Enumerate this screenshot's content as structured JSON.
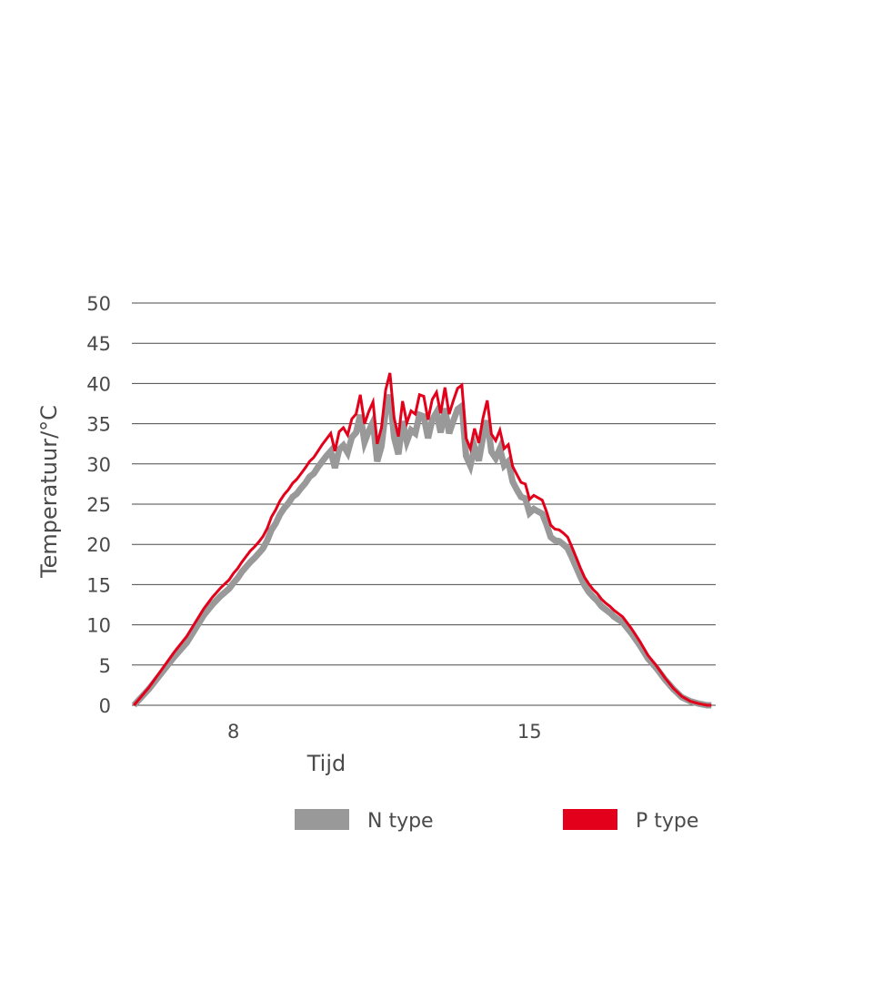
{
  "chart_data": {
    "type": "line",
    "title": "",
    "xlabel": "Tijd",
    "ylabel": "Temperatuur/°C",
    "xlim": [
      5.6,
      19.4
    ],
    "ylim": [
      0,
      50
    ],
    "y_ticks": [
      0,
      5,
      10,
      15,
      20,
      25,
      30,
      35,
      40,
      45,
      50
    ],
    "x_ticks": [
      8,
      15
    ],
    "grid": "horizontal",
    "legend_position": "bottom",
    "colors": {
      "N type": "#999999",
      "P type": "#e2001a",
      "grid": "#4a4a4a"
    },
    "series": [
      {
        "name": "N type",
        "color": "#999999",
        "x": [
          5.65,
          6.0,
          6.3,
          6.6,
          6.9,
          7.1,
          7.3,
          7.5,
          7.7,
          7.9,
          8.0,
          8.1,
          8.2,
          8.3,
          8.4,
          8.5,
          8.6,
          8.7,
          8.8,
          8.9,
          9.0,
          9.1,
          9.2,
          9.3,
          9.4,
          9.5,
          9.6,
          9.7,
          9.8,
          9.9,
          10.0,
          10.1,
          10.2,
          10.3,
          10.4,
          10.5,
          10.6,
          10.7,
          10.8,
          10.9,
          11.0,
          11.1,
          11.2,
          11.3,
          11.4,
          11.5,
          11.6,
          11.7,
          11.8,
          11.9,
          12.0,
          12.1,
          12.2,
          12.3,
          12.4,
          12.5,
          12.6,
          12.7,
          12.8,
          12.9,
          13.0,
          13.1,
          13.2,
          13.3,
          13.4,
          13.5,
          13.6,
          13.7,
          13.8,
          13.9,
          14.0,
          14.1,
          14.2,
          14.3,
          14.4,
          14.5,
          14.6,
          14.7,
          14.8,
          14.9,
          15.0,
          15.1,
          15.2,
          15.3,
          15.4,
          15.5,
          15.6,
          15.7,
          15.8,
          15.9,
          16.0,
          16.1,
          16.2,
          16.3,
          16.4,
          16.5,
          16.6,
          16.7,
          16.8,
          16.9,
          17.0,
          17.2,
          17.4,
          17.6,
          17.8,
          18.0,
          18.2,
          18.4,
          18.6,
          18.8,
          19.0,
          19.2,
          19.3
        ],
        "values": [
          0.0,
          2.0,
          4.0,
          6.0,
          7.8,
          9.5,
          11.2,
          12.5,
          13.6,
          14.5,
          15.2,
          15.8,
          16.6,
          17.2,
          17.8,
          18.3,
          18.9,
          19.5,
          20.5,
          21.8,
          22.6,
          23.7,
          24.5,
          25.1,
          25.9,
          26.3,
          27.0,
          27.6,
          28.4,
          28.8,
          29.6,
          30.3,
          31.0,
          31.6,
          29.5,
          31.8,
          32.3,
          31.4,
          33.3,
          33.9,
          36.1,
          32.7,
          34.1,
          35.2,
          30.3,
          32.2,
          36.6,
          38.6,
          33.3,
          31.2,
          35.3,
          32.8,
          34.2,
          33.8,
          36.1,
          35.9,
          33.2,
          35.5,
          36.4,
          33.9,
          36.9,
          33.8,
          35.4,
          36.8,
          37.2,
          31.0,
          29.8,
          32.1,
          30.4,
          33.3,
          35.4,
          31.5,
          30.7,
          31.9,
          29.8,
          30.3,
          27.8,
          26.8,
          25.9,
          25.7,
          23.9,
          24.4,
          24.1,
          23.8,
          22.5,
          20.9,
          20.5,
          20.4,
          20.0,
          19.5,
          18.4,
          17.2,
          16.0,
          14.9,
          14.1,
          13.5,
          13.0,
          12.3,
          11.9,
          11.5,
          11.0,
          10.3,
          9.0,
          7.5,
          5.8,
          4.6,
          3.2,
          2.0,
          1.0,
          0.5,
          0.2,
          0.0,
          0.0
        ],
        "bar_shadow_width": 0.4
      },
      {
        "name": "P type",
        "color": "#e2001a",
        "x": [
          5.65,
          6.0,
          6.3,
          6.6,
          6.9,
          7.1,
          7.3,
          7.5,
          7.7,
          7.9,
          8.0,
          8.1,
          8.2,
          8.3,
          8.4,
          8.5,
          8.6,
          8.7,
          8.8,
          8.9,
          9.0,
          9.1,
          9.2,
          9.3,
          9.4,
          9.5,
          9.6,
          9.7,
          9.8,
          9.9,
          10.0,
          10.1,
          10.2,
          10.3,
          10.4,
          10.5,
          10.6,
          10.7,
          10.8,
          10.9,
          11.0,
          11.1,
          11.2,
          11.3,
          11.4,
          11.5,
          11.6,
          11.7,
          11.8,
          11.9,
          12.0,
          12.1,
          12.2,
          12.3,
          12.4,
          12.5,
          12.6,
          12.7,
          12.8,
          12.9,
          13.0,
          13.1,
          13.2,
          13.3,
          13.4,
          13.5,
          13.6,
          13.7,
          13.8,
          13.9,
          14.0,
          14.1,
          14.2,
          14.3,
          14.4,
          14.5,
          14.6,
          14.7,
          14.8,
          14.9,
          15.0,
          15.1,
          15.2,
          15.3,
          15.4,
          15.5,
          15.6,
          15.7,
          15.8,
          15.9,
          16.0,
          16.1,
          16.2,
          16.3,
          16.4,
          16.5,
          16.6,
          16.7,
          16.8,
          16.9,
          17.0,
          17.2,
          17.4,
          17.6,
          17.8,
          18.0,
          18.2,
          18.4,
          18.6,
          18.8,
          19.0,
          19.2,
          19.3
        ],
        "values": [
          0.0,
          2.2,
          4.4,
          6.6,
          8.6,
          10.3,
          12.0,
          13.4,
          14.6,
          15.6,
          16.4,
          17.0,
          17.8,
          18.5,
          19.2,
          19.7,
          20.3,
          21.0,
          22.0,
          23.4,
          24.3,
          25.4,
          26.2,
          26.8,
          27.6,
          28.1,
          28.8,
          29.5,
          30.3,
          30.8,
          31.6,
          32.4,
          33.1,
          33.8,
          31.6,
          34.0,
          34.5,
          33.6,
          35.6,
          36.2,
          38.6,
          35.0,
          36.5,
          37.7,
          32.5,
          34.5,
          39.2,
          41.3,
          35.7,
          33.4,
          37.8,
          35.1,
          36.6,
          36.2,
          38.6,
          38.4,
          35.5,
          38.0,
          38.9,
          36.3,
          39.5,
          36.2,
          37.9,
          39.4,
          39.8,
          33.2,
          31.9,
          34.4,
          32.6,
          35.7,
          37.9,
          33.7,
          32.9,
          34.2,
          31.9,
          32.4,
          29.7,
          28.7,
          27.7,
          27.5,
          25.6,
          26.1,
          25.8,
          25.5,
          24.1,
          22.4,
          21.9,
          21.8,
          21.4,
          20.9,
          19.7,
          18.4,
          17.1,
          15.9,
          15.1,
          14.4,
          13.9,
          13.2,
          12.7,
          12.3,
          11.8,
          11.0,
          9.6,
          8.0,
          6.2,
          4.9,
          3.4,
          2.1,
          1.1,
          0.5,
          0.2,
          0.0,
          0.0
        ]
      }
    ]
  }
}
